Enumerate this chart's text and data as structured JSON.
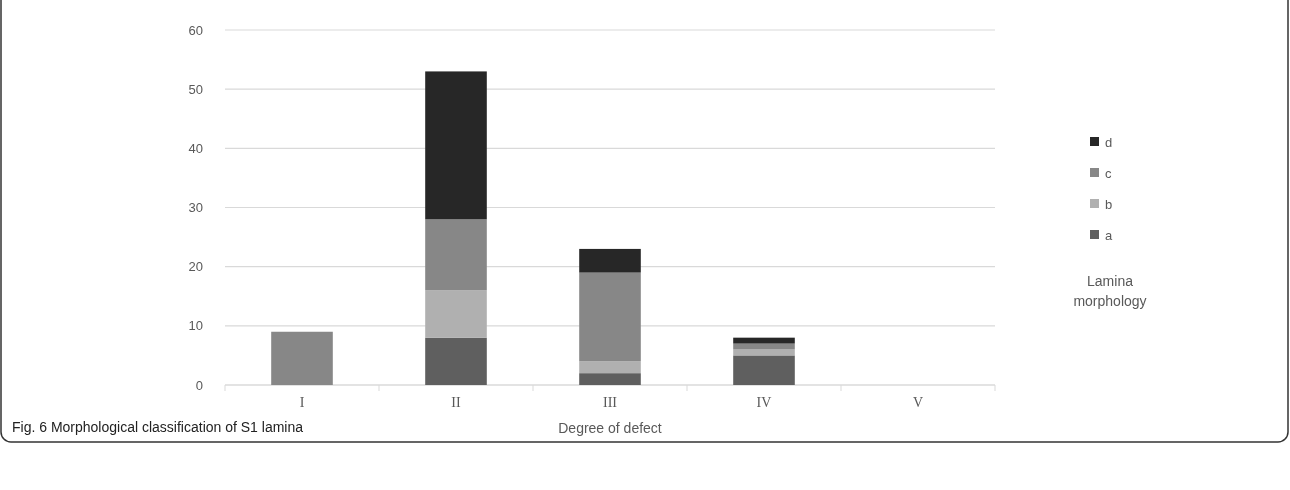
{
  "chart_data": {
    "type": "bar",
    "stacked": true,
    "xlabel": "Degree of defect",
    "legend_title": "Lamina morphology",
    "legend": "right",
    "grid": "y",
    "categories": [
      "I",
      "II",
      "III",
      "IV",
      "V"
    ],
    "series": [
      {
        "name": "a",
        "color": "#5f5f5f",
        "values": [
          0,
          8,
          2,
          5,
          0
        ]
      },
      {
        "name": "b",
        "color": "#b0b0b0",
        "values": [
          0,
          8,
          2,
          1,
          0
        ]
      },
      {
        "name": "c",
        "color": "#878787",
        "values": [
          9,
          12,
          15,
          1,
          0
        ]
      },
      {
        "name": "d",
        "color": "#272727",
        "values": [
          0,
          25,
          4,
          1,
          0
        ]
      }
    ],
    "ylim": [
      0,
      60
    ],
    "yticks": [
      0,
      10,
      20,
      30,
      40,
      50,
      60
    ],
    "annotations": [
      "Fig. 6 Morphological classification of S1 lamina"
    ]
  }
}
